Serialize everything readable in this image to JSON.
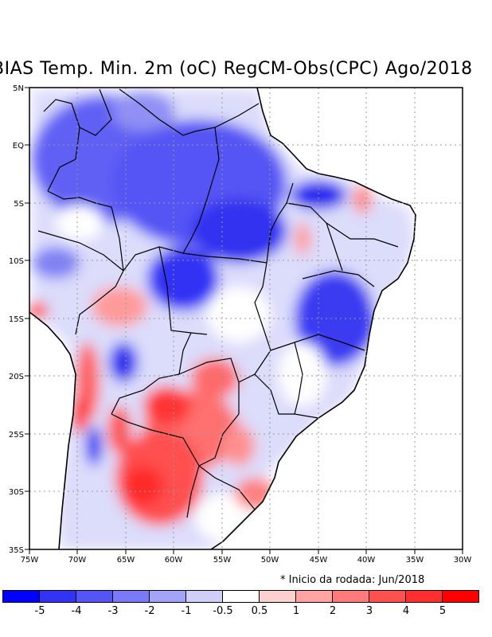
{
  "title": "BIAS Temp. Min. 2m (oC) RegCM-Obs(CPC) Ago/2018",
  "note": "* Inicio da rodada: Jun/2018",
  "axes": {
    "lon_ticks": [
      "75W",
      "70W",
      "65W",
      "60W",
      "55W",
      "50W",
      "45W",
      "40W",
      "35W",
      "30W"
    ],
    "lat_ticks": [
      "5N",
      "EQ",
      "5S",
      "10S",
      "15S",
      "20S",
      "25S",
      "30S",
      "35S"
    ]
  },
  "colorbar": {
    "colors": [
      "#0000ff",
      "#3333f5",
      "#5555f5",
      "#7a7af7",
      "#a3a3f7",
      "#cfcffa",
      "#ffffff",
      "#ffd0d0",
      "#ffa3a3",
      "#ff7a7a",
      "#ff5050",
      "#ff2f2f",
      "#ff0000"
    ],
    "labels": [
      "-5",
      "-4",
      "-3",
      "-2",
      "-1",
      "-0.5",
      "0.5",
      "1",
      "2",
      "3",
      "4",
      "5"
    ]
  }
}
